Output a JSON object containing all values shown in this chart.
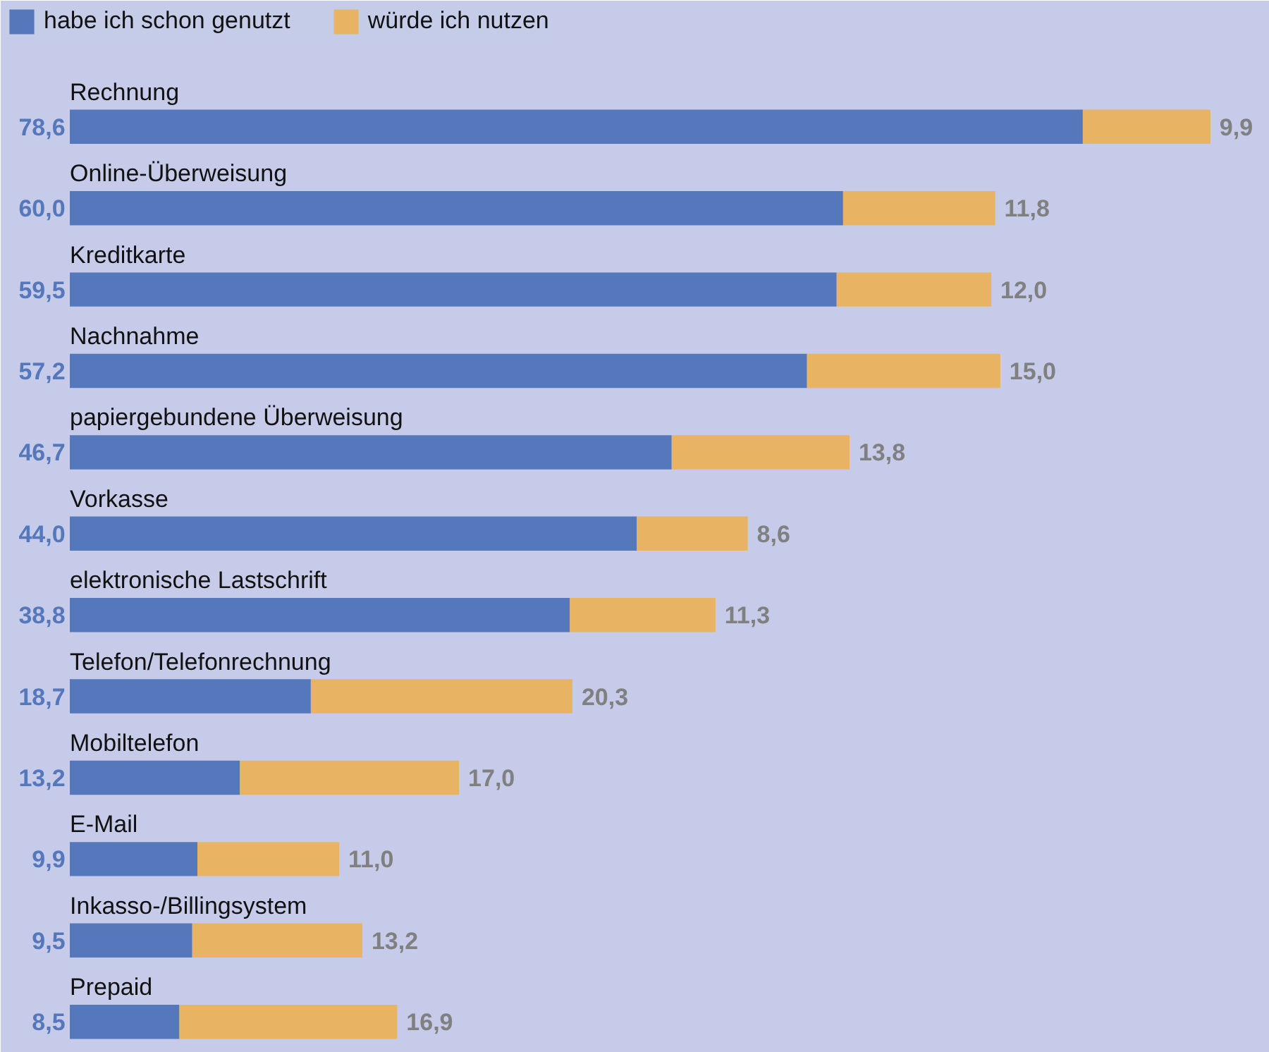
{
  "chart_data": {
    "type": "bar",
    "orientation": "horizontal",
    "stacked": true,
    "legend": "top left",
    "categories": [
      "Rechnung",
      "Online-Überweisung",
      "Kreditkarte",
      "Nachnahme",
      "papiergebundene Überweisung",
      "Vorkasse",
      "elektronische Lastschrift",
      "Telefon/Telefonrechnung",
      "Mobiltelefon",
      "E-Mail",
      "Inkasso-/Billingsystem",
      "Prepaid"
    ],
    "series": [
      {
        "name": "habe ich schon genutzt",
        "color": "#5577bb",
        "values": [
          78.6,
          60.0,
          59.5,
          57.2,
          46.7,
          44.0,
          38.8,
          18.7,
          13.2,
          9.9,
          9.5,
          8.5
        ],
        "value_labels": [
          "78,6",
          "60,0",
          "59,5",
          "57,2",
          "46,7",
          "44,0",
          "38,8",
          "18,7",
          "13,2",
          "9,9",
          "9,5",
          "8,5"
        ]
      },
      {
        "name": "würde ich nutzen",
        "color": "#e8b464",
        "values": [
          9.9,
          11.8,
          12.0,
          15.0,
          13.8,
          8.6,
          11.3,
          20.3,
          17.0,
          11.0,
          13.2,
          16.9
        ],
        "value_labels": [
          "9,9",
          "11,8",
          "12,0",
          "15,0",
          "13,8",
          "8,6",
          "11,3",
          "20,3",
          "17,0",
          "11,0",
          "13,2",
          "16,9"
        ]
      }
    ]
  }
}
